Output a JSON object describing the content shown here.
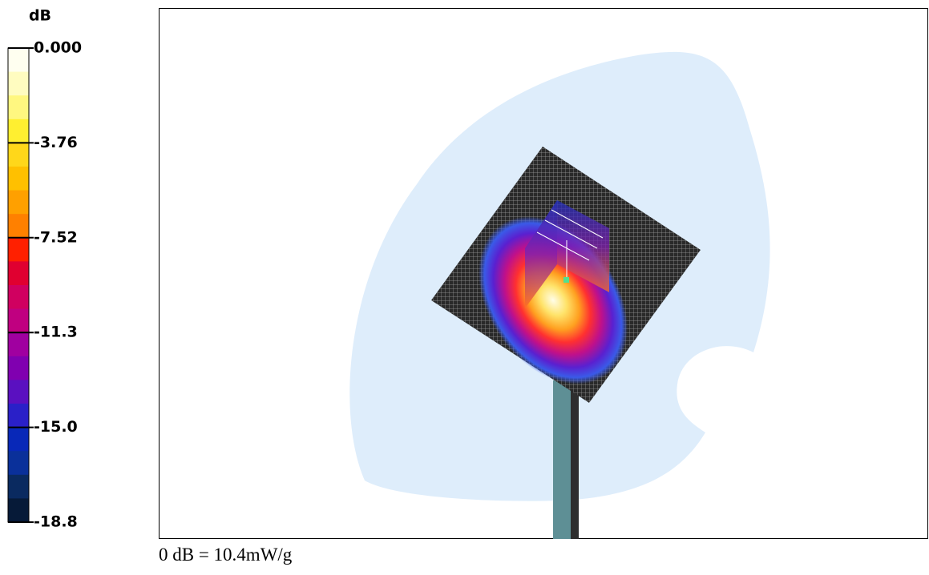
{
  "legend": {
    "unit": "dB",
    "ticks": [
      "0.000",
      "-3.76",
      "-7.52",
      "-11.3",
      "-15.0",
      "-18.8"
    ]
  },
  "caption": "0 dB = 10.4mW/g"
}
